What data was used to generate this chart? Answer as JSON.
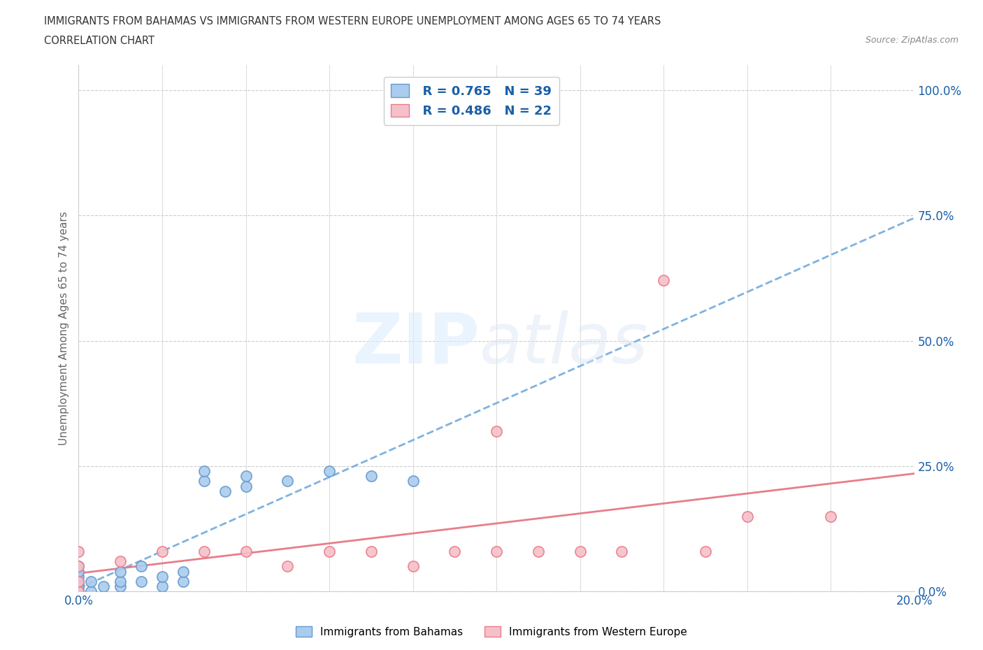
{
  "title_line1": "IMMIGRANTS FROM BAHAMAS VS IMMIGRANTS FROM WESTERN EUROPE UNEMPLOYMENT AMONG AGES 65 TO 74 YEARS",
  "title_line2": "CORRELATION CHART",
  "source": "Source: ZipAtlas.com",
  "ylabel": "Unemployment Among Ages 65 to 74 years",
  "xlim": [
    0.0,
    0.2
  ],
  "ylim": [
    0.0,
    1.05
  ],
  "ytick_vals": [
    0.0,
    0.25,
    0.5,
    0.75,
    1.0
  ],
  "ytick_labels": [
    "0.0%",
    "25.0%",
    "50.0%",
    "75.0%",
    "100.0%"
  ],
  "xtick_vals": [
    0.0,
    0.02,
    0.04,
    0.06,
    0.08,
    0.1,
    0.12,
    0.14,
    0.16,
    0.18,
    0.2
  ],
  "xtick_labels": [
    "0.0%",
    "",
    "",
    "",
    "",
    "",
    "",
    "",
    "",
    "",
    "20.0%"
  ],
  "grid_color": "#cccccc",
  "background_color": "#ffffff",
  "bahamas_color": "#aaccee",
  "bahamas_edge_color": "#6699cc",
  "bahamas_line_color": "#7fb2e0",
  "bahamas_R": 0.765,
  "bahamas_N": 39,
  "bahamas_x": [
    0.0,
    0.0,
    0.0,
    0.0,
    0.0,
    0.0,
    0.0,
    0.0,
    0.0,
    0.0,
    0.0,
    0.0,
    0.0,
    0.0,
    0.0,
    0.0,
    0.0,
    0.0,
    0.003,
    0.003,
    0.006,
    0.01,
    0.01,
    0.01,
    0.015,
    0.015,
    0.02,
    0.02,
    0.025,
    0.025,
    0.03,
    0.03,
    0.035,
    0.04,
    0.04,
    0.05,
    0.06,
    0.07,
    0.08
  ],
  "bahamas_y": [
    0.0,
    0.0,
    0.0,
    0.0,
    0.0,
    0.0,
    0.0,
    0.0,
    0.0,
    0.0,
    0.0,
    0.01,
    0.01,
    0.02,
    0.02,
    0.03,
    0.04,
    0.05,
    0.0,
    0.02,
    0.01,
    0.01,
    0.02,
    0.04,
    0.02,
    0.05,
    0.01,
    0.03,
    0.02,
    0.04,
    0.22,
    0.24,
    0.2,
    0.21,
    0.23,
    0.22,
    0.24,
    0.23,
    0.22
  ],
  "western_europe_color": "#f5c0ca",
  "western_europe_edge_color": "#e87d8a",
  "western_europe_line_color": "#e87d8a",
  "western_europe_R": 0.486,
  "western_europe_N": 22,
  "western_europe_x": [
    0.0,
    0.0,
    0.0,
    0.0,
    0.01,
    0.02,
    0.03,
    0.04,
    0.05,
    0.06,
    0.07,
    0.08,
    0.09,
    0.1,
    0.1,
    0.11,
    0.12,
    0.13,
    0.14,
    0.15,
    0.16,
    0.18
  ],
  "western_europe_y": [
    0.0,
    0.02,
    0.05,
    0.08,
    0.06,
    0.08,
    0.08,
    0.08,
    0.05,
    0.08,
    0.08,
    0.05,
    0.08,
    0.08,
    0.32,
    0.08,
    0.08,
    0.08,
    0.62,
    0.08,
    0.15,
    0.15
  ],
  "legend_color": "#1a5fa8",
  "legend_N_color": "#e05050",
  "legend_label_bahamas": "Immigrants from Bahamas",
  "legend_label_western": "Immigrants from Western Europe",
  "watermark_zip_color": "#ddeeff",
  "watermark_atlas_color": "#dde8f5"
}
